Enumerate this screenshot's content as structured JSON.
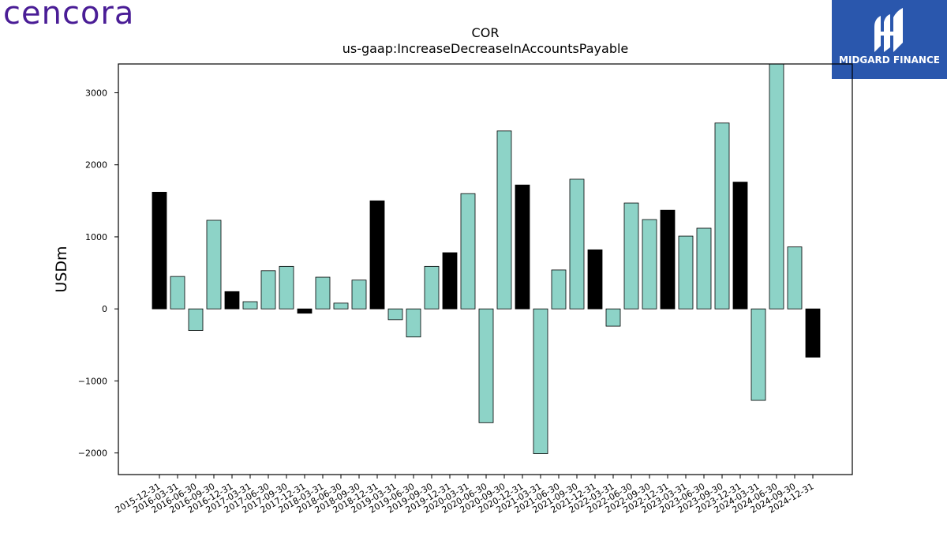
{
  "logos": {
    "left_brand": "cencora",
    "right_brand": "MIDGARD FINANCE"
  },
  "colors": {
    "bar_default": "#8dd3c7",
    "bar_highlight": "#000000",
    "right_logo_bg": "#2a57ad",
    "left_logo_text": "#4a1d96"
  },
  "chart_data": {
    "type": "bar",
    "title": "COR",
    "subtitle": "us-gaap:IncreaseDecreaseInAccountsPayable",
    "xlabel": "",
    "ylabel": "USDm",
    "ylim": [
      -2300,
      3400
    ],
    "yticks": [
      -2000,
      -1000,
      0,
      1000,
      2000,
      3000
    ],
    "grid": false,
    "legend": "none",
    "categories": [
      "2015-12-31",
      "2016-03-31",
      "2016-06-30",
      "2016-09-30",
      "2016-12-31",
      "2017-03-31",
      "2017-06-30",
      "2017-09-30",
      "2017-12-31",
      "2018-03-31",
      "2018-06-30",
      "2018-09-30",
      "2018-12-31",
      "2019-03-31",
      "2019-06-30",
      "2019-09-30",
      "2019-12-31",
      "2020-03-31",
      "2020-06-30",
      "2020-09-30",
      "2020-12-31",
      "2021-03-31",
      "2021-06-30",
      "2021-09-30",
      "2021-12-31",
      "2022-03-31",
      "2022-06-30",
      "2022-09-30",
      "2022-12-31",
      "2023-03-31",
      "2023-06-30",
      "2023-09-30",
      "2023-12-31",
      "2024-03-31",
      "2024-06-30",
      "2024-09-30",
      "2024-12-31"
    ],
    "values": [
      1620,
      450,
      -300,
      1230,
      240,
      100,
      530,
      590,
      -60,
      440,
      80,
      400,
      1500,
      -150,
      -390,
      590,
      780,
      1600,
      -1580,
      2470,
      1720,
      -2010,
      540,
      1800,
      820,
      -240,
      1470,
      1240,
      1370,
      1010,
      1120,
      2580,
      1760,
      -1270,
      3420,
      860,
      -670
    ],
    "highlight": [
      true,
      false,
      false,
      false,
      true,
      false,
      false,
      false,
      true,
      false,
      false,
      false,
      true,
      false,
      false,
      false,
      true,
      false,
      false,
      false,
      true,
      false,
      false,
      false,
      true,
      false,
      false,
      false,
      true,
      false,
      false,
      false,
      true,
      false,
      false,
      false,
      true
    ]
  }
}
